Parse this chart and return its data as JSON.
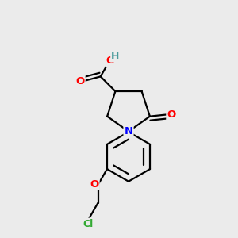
{
  "background_color": "#ebebeb",
  "atom_colors": {
    "C": "#000000",
    "O": "#ff0000",
    "N": "#0000ff",
    "Cl": "#33aa33",
    "H": "#4a9a9a"
  },
  "bond_color": "#000000",
  "bond_width": 1.6,
  "figsize": [
    3.0,
    3.0
  ],
  "dpi": 100
}
